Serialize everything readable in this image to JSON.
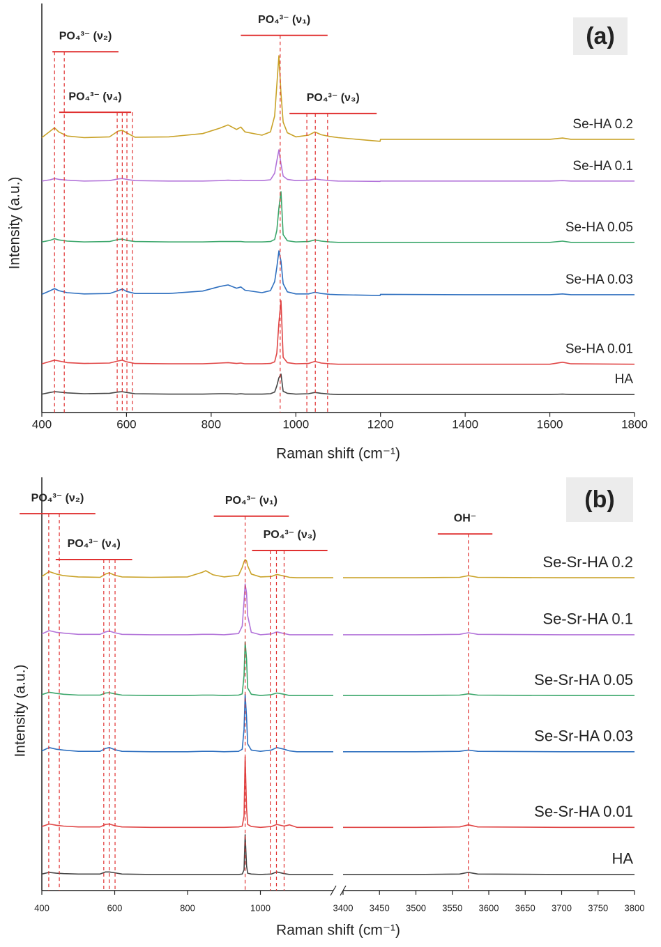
{
  "chart_data": [
    {
      "type": "line",
      "title": "(a)",
      "xlabel": "Raman shift (cm⁻¹)",
      "ylabel": "Intensity (a.u.)",
      "x": [
        400,
        420,
        430,
        440,
        460,
        500,
        560,
        580,
        590,
        600,
        620,
        700,
        780,
        820,
        840,
        860,
        870,
        880,
        920,
        940,
        950,
        955,
        960,
        965,
        970,
        980,
        1000,
        1030,
        1045,
        1060,
        1080,
        1100,
        1199,
        1200,
        1400,
        1600,
        1630,
        1650,
        1800
      ],
      "xlim": [
        400,
        1800
      ],
      "xticks": [
        400,
        600,
        800,
        1000,
        1200,
        1400,
        1600,
        1800
      ],
      "ylim": [
        0,
        100
      ],
      "series": [
        {
          "name": "Se-HA 0.2",
          "color": "#c9a227",
          "values": [
            67.2,
            68.8,
            69.6,
            68.6,
            67.6,
            67.2,
            67.4,
            68.8,
            69.0,
            68.4,
            67.3,
            67.4,
            68.2,
            69.5,
            70.3,
            69.2,
            69.8,
            68.6,
            67.8,
            68.6,
            72.5,
            80,
            87.2,
            78,
            71,
            68.4,
            67.4,
            67.8,
            68.6,
            67.9,
            67.5,
            67.2,
            66.3,
            66.8,
            66.8,
            66.8,
            67.1,
            66.8,
            66.8
          ]
        },
        {
          "name": "Se-HA 0.1",
          "color": "#b273d9",
          "values": [
            56.6,
            56.9,
            57.2,
            57.0,
            56.8,
            56.6,
            56.7,
            57.1,
            57.2,
            57.0,
            56.7,
            56.6,
            56.6,
            56.7,
            56.8,
            56.7,
            56.8,
            56.7,
            56.7,
            56.9,
            58.5,
            61.5,
            64.2,
            60.8,
            57.8,
            57.0,
            56.7,
            56.8,
            57.1,
            56.9,
            56.7,
            56.6,
            56.5,
            56.6,
            56.6,
            56.6,
            56.7,
            56.6,
            56.6
          ]
        },
        {
          "name": "Se-HA 0.05",
          "color": "#3aa66a",
          "values": [
            41.7,
            42.1,
            42.5,
            42.2,
            41.9,
            41.7,
            41.8,
            42.3,
            42.4,
            42.1,
            41.8,
            41.7,
            41.7,
            41.8,
            41.8,
            41.8,
            41.8,
            41.7,
            41.7,
            41.8,
            42.3,
            44.5,
            50,
            54,
            43.5,
            42.0,
            41.7,
            41.8,
            42.2,
            41.9,
            41.7,
            41.6,
            41.6,
            41.6,
            41.6,
            41.6,
            41.9,
            41.6,
            41.6
          ]
        },
        {
          "name": "Se-HA 0.03",
          "color": "#2e6fbf",
          "values": [
            28.9,
            29.8,
            30.3,
            29.8,
            29.3,
            29.0,
            29.1,
            29.8,
            30.2,
            29.6,
            29.1,
            29.1,
            29.7,
            30.8,
            31.2,
            30.4,
            30.7,
            29.9,
            29.3,
            29.8,
            32,
            35.5,
            39.5,
            37,
            31.5,
            29.5,
            29.0,
            29.0,
            29.4,
            29.1,
            28.9,
            28.8,
            28.6,
            28.9,
            28.8,
            28.8,
            29.0,
            28.8,
            28.8
          ]
        },
        {
          "name": "Se-HA 0.01",
          "color": "#e04545",
          "values": [
            11.9,
            12.5,
            12.8,
            12.6,
            12.2,
            12.0,
            12.1,
            12.6,
            12.8,
            12.4,
            12.0,
            11.9,
            11.9,
            12.1,
            12.2,
            12.0,
            12.1,
            11.9,
            11.9,
            12.0,
            12.4,
            14.5,
            22,
            27.3,
            13.5,
            12.2,
            11.9,
            12.0,
            12.5,
            12.1,
            11.9,
            11.8,
            11.8,
            11.8,
            11.8,
            11.8,
            12.3,
            11.9,
            11.8
          ]
        },
        {
          "name": "HA",
          "color": "#454545",
          "values": [
            4.5,
            4.9,
            5.1,
            5.0,
            4.8,
            4.6,
            4.7,
            5.0,
            5.1,
            4.9,
            4.6,
            4.5,
            4.5,
            4.6,
            4.6,
            4.5,
            4.6,
            4.5,
            4.5,
            4.6,
            5.0,
            6.5,
            8.5,
            9.4,
            5.2,
            4.7,
            4.5,
            4.6,
            4.9,
            4.7,
            4.5,
            4.4,
            4.4,
            4.4,
            4.4,
            4.4,
            4.5,
            4.4,
            4.4
          ]
        }
      ],
      "annotations": [
        {
          "label": "PO₄³⁻ (ν₂)",
          "x_range": [
            425,
            581
          ],
          "y": 88.2,
          "lines": [
            430,
            453
          ]
        },
        {
          "label": "PO₄³⁻ (ν₄)",
          "x_range": [
            441,
            611
          ],
          "y": 73.4,
          "lines": [
            578,
            590,
            601,
            614
          ]
        },
        {
          "label": "PO₄³⁻ (ν₁)",
          "x_range": [
            870,
            1075
          ],
          "y": 92.2,
          "lines": [
            963
          ]
        },
        {
          "label": "PO₄³⁻ (ν₃)",
          "x_range": [
            985,
            1191
          ],
          "y": 73.1,
          "lines": [
            1026,
            1046,
            1075
          ]
        }
      ]
    },
    {
      "type": "line",
      "title": "(b)",
      "xlabel": "Raman shift (cm⁻¹)",
      "ylabel": "Intensity (a.u.)",
      "x": [
        400,
        420,
        440,
        460,
        500,
        560,
        575,
        585,
        600,
        620,
        700,
        800,
        840,
        850,
        870,
        900,
        940,
        950,
        955,
        958,
        962,
        965,
        975,
        1000,
        1030,
        1045,
        1065,
        1080,
        1100,
        1200,
        3400,
        3500,
        3560,
        3572,
        3585,
        3700,
        3800
      ],
      "xlim": [
        400,
        3800
      ],
      "xbreak": [
        1200,
        3400
      ],
      "xticks": [
        400,
        600,
        800,
        1000,
        3400,
        3450,
        3500,
        3550,
        3600,
        3650,
        3700,
        3750,
        3800
      ],
      "ylim": [
        0,
        100
      ],
      "series": [
        {
          "name": "Se-Sr-HA 0.2",
          "color": "#c9a227",
          "values": [
            76.0,
            77.2,
            76.6,
            76.2,
            75.9,
            75.8,
            76.6,
            76.9,
            76.3,
            75.9,
            75.8,
            75.9,
            77.0,
            77.4,
            76.4,
            75.9,
            76.3,
            78.2,
            79.6,
            80.1,
            79.8,
            78.6,
            76.6,
            75.9,
            76.0,
            76.5,
            76.1,
            75.8,
            75.7,
            75.7,
            75.7,
            75.7,
            75.8,
            76.2,
            75.8,
            75.7,
            75.7
          ]
        },
        {
          "name": "Se-Sr-HA 0.1",
          "color": "#b273d9",
          "values": [
            62.1,
            62.9,
            62.5,
            62.3,
            62.0,
            62.0,
            62.6,
            62.8,
            62.4,
            62.0,
            61.9,
            61.9,
            62.0,
            62.0,
            62.0,
            61.9,
            62.2,
            64,
            70,
            74.2,
            72,
            66.5,
            62.5,
            61.9,
            62.1,
            62.6,
            62.2,
            61.9,
            61.9,
            61.9,
            61.9,
            61.9,
            62.0,
            62.4,
            62.0,
            61.9,
            61.9
          ]
        },
        {
          "name": "Se-Sr-HA 0.05",
          "color": "#3aa66a",
          "values": [
            47.4,
            48.0,
            47.7,
            47.5,
            47.3,
            47.3,
            47.8,
            47.9,
            47.6,
            47.3,
            47.2,
            47.2,
            47.3,
            47.3,
            47.3,
            47.2,
            47.3,
            47.6,
            52,
            60.2,
            56,
            49,
            47.5,
            47.2,
            47.4,
            47.8,
            47.5,
            47.2,
            47.2,
            47.2,
            47.2,
            47.2,
            47.3,
            47.6,
            47.3,
            47.2,
            47.2
          ]
        },
        {
          "name": "Se-Sr-HA 0.03",
          "color": "#2e6fbf",
          "values": [
            33.8,
            34.6,
            34.2,
            34.0,
            33.7,
            33.7,
            34.4,
            34.6,
            34.1,
            33.7,
            33.6,
            33.6,
            33.7,
            33.7,
            33.7,
            33.6,
            33.7,
            34.2,
            39,
            47.5,
            42,
            35.5,
            34.0,
            33.7,
            34.0,
            34.6,
            34.2,
            33.8,
            33.6,
            33.6,
            33.6,
            33.6,
            33.7,
            34.0,
            33.7,
            33.6,
            33.6
          ]
        },
        {
          "name": "Se-Sr-HA 0.01",
          "color": "#e04545",
          "values": [
            15.5,
            16.1,
            15.8,
            15.6,
            15.4,
            15.4,
            16.0,
            16.1,
            15.7,
            15.4,
            15.3,
            15.3,
            15.3,
            15.3,
            15.3,
            15.3,
            15.4,
            15.6,
            18,
            32.4,
            20,
            16.0,
            15.5,
            15.3,
            15.5,
            16.0,
            15.6,
            15.9,
            15.3,
            15.3,
            15.3,
            15.3,
            15.4,
            15.9,
            15.4,
            15.3,
            15.3
          ]
        },
        {
          "name": "HA",
          "color": "#454545",
          "values": [
            4.0,
            4.4,
            4.2,
            4.1,
            4.0,
            4.0,
            4.5,
            4.5,
            4.3,
            4.0,
            3.9,
            3.9,
            3.9,
            3.9,
            3.9,
            3.9,
            3.9,
            4.0,
            5,
            13.5,
            6,
            4.2,
            4.0,
            3.9,
            4.0,
            4.5,
            4.1,
            3.9,
            3.9,
            3.9,
            3.9,
            3.9,
            4.0,
            4.4,
            4.0,
            3.9,
            3.9
          ]
        }
      ],
      "annotations": [
        {
          "label": "PO₄³⁻ (ν₂)",
          "x_range": [
            339,
            547
          ],
          "y": 91.2,
          "lines": [
            419,
            448
          ]
        },
        {
          "label": "PO₄³⁻ (ν₄)",
          "x_range": [
            438,
            648
          ],
          "y": 80.1,
          "lines": [
            570,
            585,
            601
          ]
        },
        {
          "label": "PO₄³⁻ (ν₁)",
          "x_range": [
            872,
            1078
          ],
          "y": 90.6,
          "lines": [
            958
          ]
        },
        {
          "label": "PO₄³⁻ (ν₃)",
          "x_range": [
            977,
            1184
          ],
          "y": 82.3,
          "lines": [
            1027,
            1044,
            1065
          ]
        },
        {
          "label": "OH⁻",
          "x_range": [
            3530,
            3605
          ],
          "y": 86.3,
          "lines": [
            3572
          ]
        }
      ]
    }
  ]
}
